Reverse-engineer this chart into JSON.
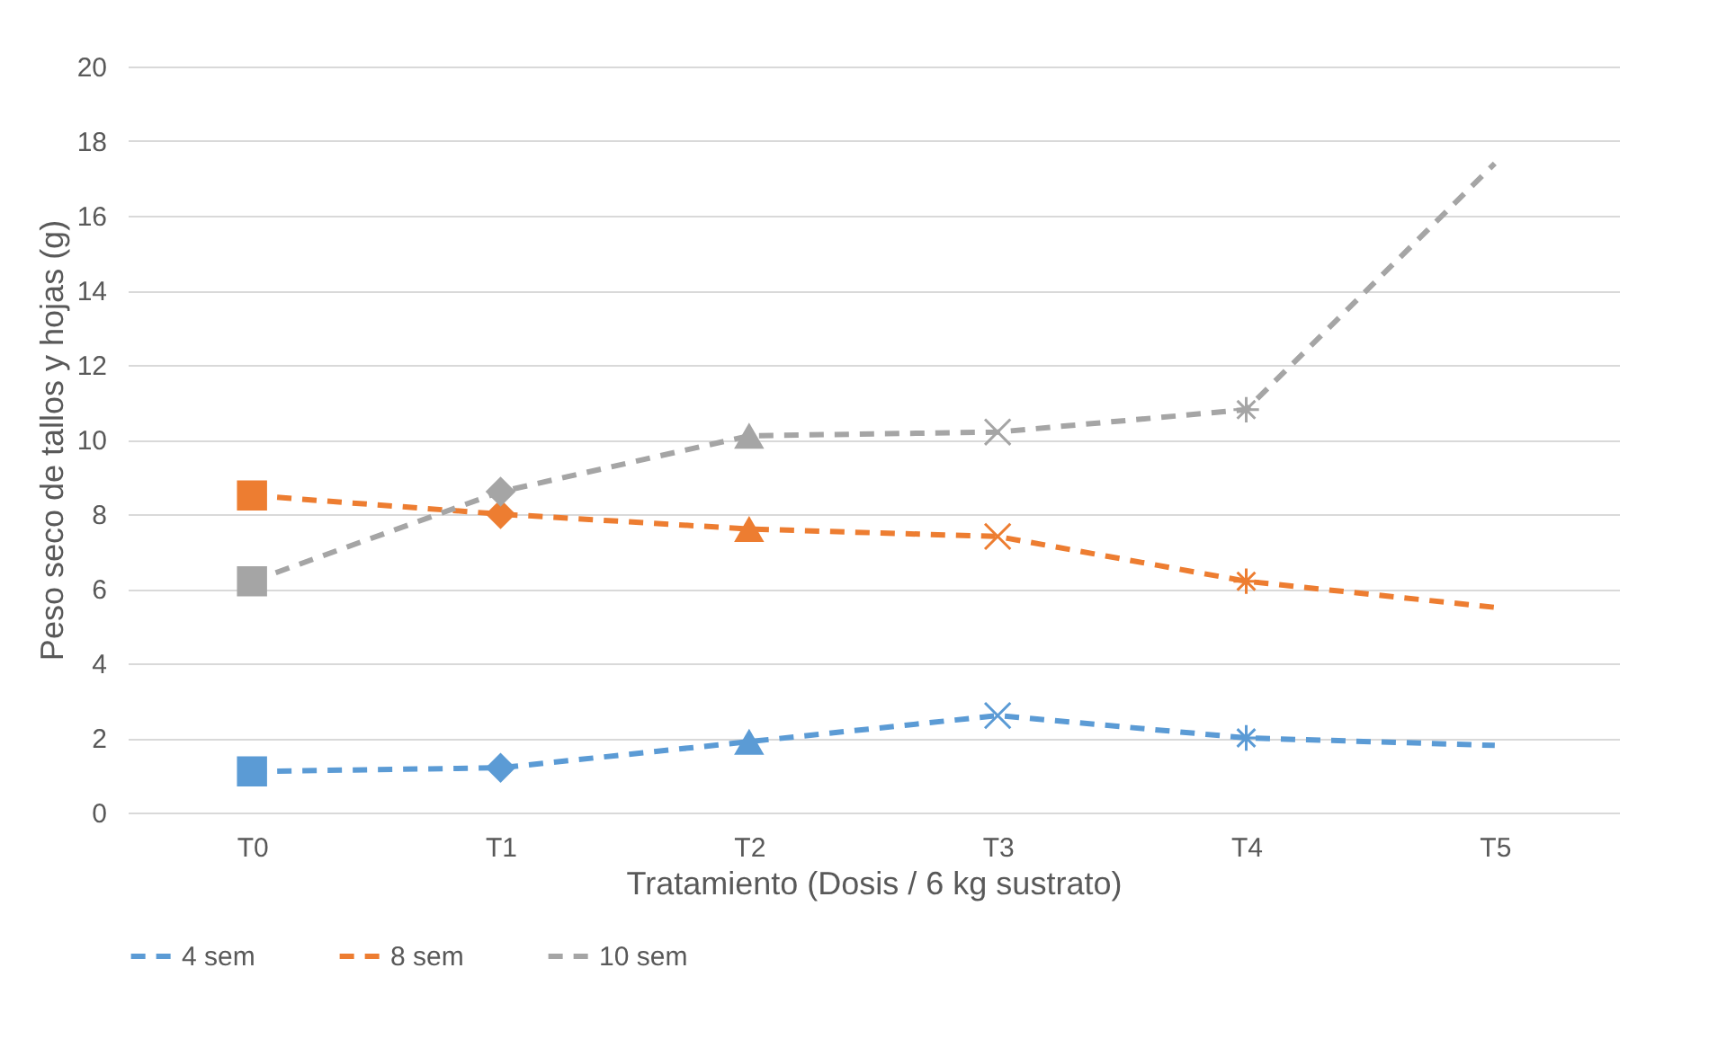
{
  "chart_data": {
    "type": "line",
    "xlabel": "Tratamiento (Dosis / 6 kg sustrato)",
    "ylabel": "Peso seco de tallos y hojas (g)",
    "categories": [
      "T0",
      "T1",
      "T2",
      "T3",
      "T4",
      "T5"
    ],
    "series": [
      {
        "name": "4 sem",
        "color": "#5b9bd5",
        "values": [
          1.1,
          1.2,
          1.9,
          2.6,
          2.0,
          1.8
        ]
      },
      {
        "name": "8 sem",
        "color": "#ed7d31",
        "values": [
          8.5,
          8.0,
          7.6,
          7.4,
          6.2,
          5.5
        ]
      },
      {
        "name": "10 sem",
        "color": "#a5a5a5",
        "values": [
          6.2,
          8.6,
          10.1,
          10.2,
          10.8,
          17.4
        ]
      }
    ],
    "marker": [
      "square",
      "diamond",
      "triangle",
      "cross",
      "star",
      "none"
    ],
    "line_style": "dashed",
    "ylim": [
      0,
      20
    ],
    "yticks": [
      0,
      2,
      4,
      6,
      8,
      10,
      12,
      14,
      16,
      18,
      20
    ],
    "grid": "y",
    "legend": "bottom"
  }
}
